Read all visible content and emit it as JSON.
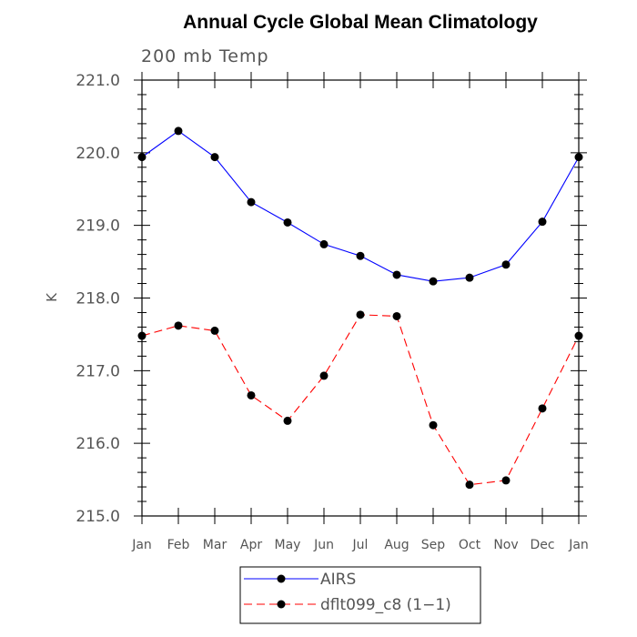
{
  "chart_data": {
    "type": "line",
    "title": "Annual Cycle Global Mean Climatology",
    "subtitle": "200 mb Temp",
    "xlabel": "",
    "ylabel": "K",
    "categories": [
      "Jan",
      "Feb",
      "Mar",
      "Apr",
      "May",
      "Jun",
      "Jul",
      "Aug",
      "Sep",
      "Oct",
      "Nov",
      "Dec",
      "Jan"
    ],
    "ylim": [
      215.0,
      221.0
    ],
    "yticks": [
      "215.0",
      "216.0",
      "217.0",
      "218.0",
      "219.0",
      "220.0",
      "221.0"
    ],
    "legend_position": "bottom-center",
    "series": [
      {
        "name": "AIRS",
        "color": "#0000ff",
        "dash": "solid",
        "values": [
          219.94,
          220.3,
          219.94,
          219.32,
          219.04,
          218.74,
          218.58,
          218.32,
          218.23,
          218.28,
          218.46,
          219.05,
          219.94
        ]
      },
      {
        "name": "dflt099_c8 (1−1)",
        "color": "#ff0000",
        "dash": "dashed",
        "values": [
          217.48,
          217.62,
          217.55,
          216.66,
          216.31,
          216.93,
          217.77,
          217.75,
          216.25,
          215.43,
          215.49,
          216.48,
          217.48
        ]
      }
    ]
  }
}
